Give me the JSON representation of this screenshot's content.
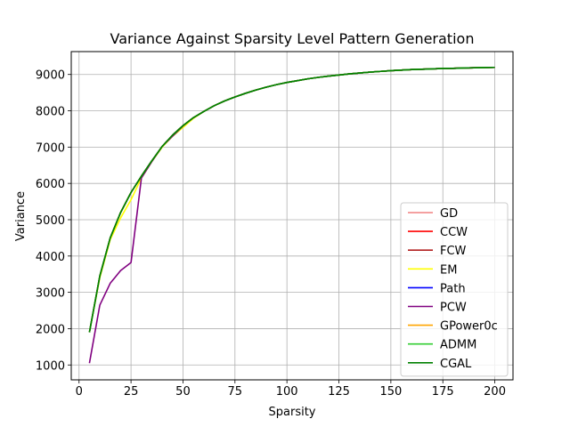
{
  "chart_data": {
    "type": "line",
    "title": "Variance Against Sparsity Level Pattern Generation",
    "xlabel": "Sparsity",
    "ylabel": "Variance",
    "xlim": [
      -3.75,
      208.75
    ],
    "ylim": [
      590,
      9630
    ],
    "xticks": [
      0,
      25,
      50,
      75,
      100,
      125,
      150,
      175,
      200
    ],
    "yticks": [
      1000,
      2000,
      3000,
      4000,
      5000,
      6000,
      7000,
      8000,
      9000
    ],
    "grid": true,
    "legend_position": "lower-right",
    "x": [
      5,
      10,
      15,
      20,
      25,
      30,
      35,
      40,
      45,
      50,
      55,
      60,
      65,
      70,
      75,
      80,
      85,
      90,
      95,
      100,
      105,
      110,
      115,
      120,
      125,
      130,
      135,
      140,
      145,
      150,
      155,
      160,
      165,
      170,
      175,
      180,
      185,
      190,
      195,
      200
    ],
    "series": [
      {
        "name": "GD",
        "color": "#f08080",
        "values": [
          1900,
          3450,
          4500,
          5200,
          5750,
          6200,
          6620,
          7020,
          7330,
          7590,
          7810,
          7980,
          8140,
          8270,
          8380,
          8480,
          8570,
          8650,
          8720,
          8780,
          8830,
          8880,
          8920,
          8955,
          8985,
          9015,
          9040,
          9065,
          9085,
          9105,
          9120,
          9135,
          9145,
          9155,
          9165,
          9170,
          9178,
          9184,
          9190,
          9195
        ]
      },
      {
        "name": "CCW",
        "color": "#ff0000",
        "values": [
          1900,
          3450,
          4500,
          5200,
          5750,
          6200,
          6620,
          7020,
          7330,
          7590,
          7810,
          7980,
          8140,
          8270,
          8380,
          8480,
          8570,
          8650,
          8720,
          8780,
          8830,
          8880,
          8920,
          8955,
          8985,
          9015,
          9040,
          9065,
          9085,
          9105,
          9120,
          9135,
          9145,
          9155,
          9165,
          9170,
          9178,
          9184,
          9190,
          9195
        ]
      },
      {
        "name": "FCW",
        "color": "#b22222",
        "values": [
          1900,
          3450,
          4500,
          5200,
          5750,
          6200,
          6620,
          7020,
          7330,
          7590,
          7810,
          7980,
          8140,
          8270,
          8380,
          8480,
          8570,
          8650,
          8720,
          8780,
          8830,
          8880,
          8920,
          8955,
          8985,
          9015,
          9040,
          9065,
          9085,
          9105,
          9120,
          9135,
          9145,
          9155,
          9165,
          9170,
          9178,
          9184,
          9190,
          9195
        ]
      },
      {
        "name": "EM",
        "color": "#ffff00",
        "values": [
          1900,
          3400,
          4450,
          5050,
          5550,
          6150,
          6600,
          7000,
          7300,
          7540,
          7790,
          7980,
          8140,
          8270,
          8380,
          8480,
          8570,
          8650,
          8720,
          8780,
          8830,
          8880,
          8920,
          8955,
          8985,
          9015,
          9040,
          9065,
          9085,
          9105,
          9120,
          9135,
          9145,
          9155,
          9165,
          9170,
          9178,
          9184,
          9190,
          9195
        ]
      },
      {
        "name": "Path",
        "color": "#0000ff",
        "values": [
          1900,
          3450,
          4500,
          5200,
          5750,
          6200,
          6620,
          7020,
          7330,
          7590,
          7810,
          7980,
          8140,
          8270,
          8380,
          8480,
          8570,
          8650,
          8720,
          8780,
          8830,
          8880,
          8920,
          8955,
          8985,
          9015,
          9040,
          9065,
          9085,
          9105,
          9120,
          9135,
          9145,
          9155,
          9165,
          9170,
          9178,
          9184,
          9190,
          9195
        ]
      },
      {
        "name": "PCW",
        "color": "#800080",
        "values": [
          1050,
          2650,
          3250,
          3600,
          3820,
          6150,
          6600,
          7020,
          7300,
          7580,
          7810,
          7980,
          8140,
          8270,
          8380,
          8480,
          8570,
          8650,
          8720,
          8780,
          8830,
          8880,
          8920,
          8955,
          8985,
          9015,
          9040,
          9065,
          9085,
          9105,
          9120,
          9135,
          9145,
          9155,
          9165,
          9170,
          9178,
          9184,
          9190,
          9195
        ]
      },
      {
        "name": "GPower0c",
        "color": "#ffa500",
        "values": [
          1900,
          3450,
          4500,
          5200,
          5750,
          6200,
          6620,
          7020,
          7330,
          7590,
          7810,
          7980,
          8140,
          8270,
          8380,
          8480,
          8570,
          8650,
          8720,
          8780,
          8830,
          8880,
          8920,
          8955,
          8985,
          9015,
          9040,
          9065,
          9085,
          9105,
          9120,
          9135,
          9145,
          9155,
          9165,
          9170,
          9178,
          9184,
          9190,
          9195
        ]
      },
      {
        "name": "ADMM",
        "color": "#32cd32",
        "values": [
          1900,
          3450,
          4500,
          5200,
          5750,
          6200,
          6620,
          7020,
          7330,
          7590,
          7810,
          7980,
          8140,
          8270,
          8380,
          8480,
          8570,
          8650,
          8720,
          8780,
          8830,
          8880,
          8920,
          8955,
          8985,
          9015,
          9040,
          9065,
          9085,
          9105,
          9120,
          9135,
          9145,
          9155,
          9165,
          9170,
          9178,
          9184,
          9190,
          9195
        ]
      },
      {
        "name": "CGAL",
        "color": "#008000",
        "values": [
          1900,
          3450,
          4500,
          5200,
          5750,
          6200,
          6620,
          7020,
          7330,
          7590,
          7810,
          7980,
          8140,
          8270,
          8380,
          8480,
          8570,
          8650,
          8720,
          8780,
          8830,
          8880,
          8920,
          8955,
          8985,
          9015,
          9040,
          9065,
          9085,
          9105,
          9120,
          9135,
          9145,
          9155,
          9165,
          9170,
          9178,
          9184,
          9190,
          9195
        ]
      }
    ]
  }
}
